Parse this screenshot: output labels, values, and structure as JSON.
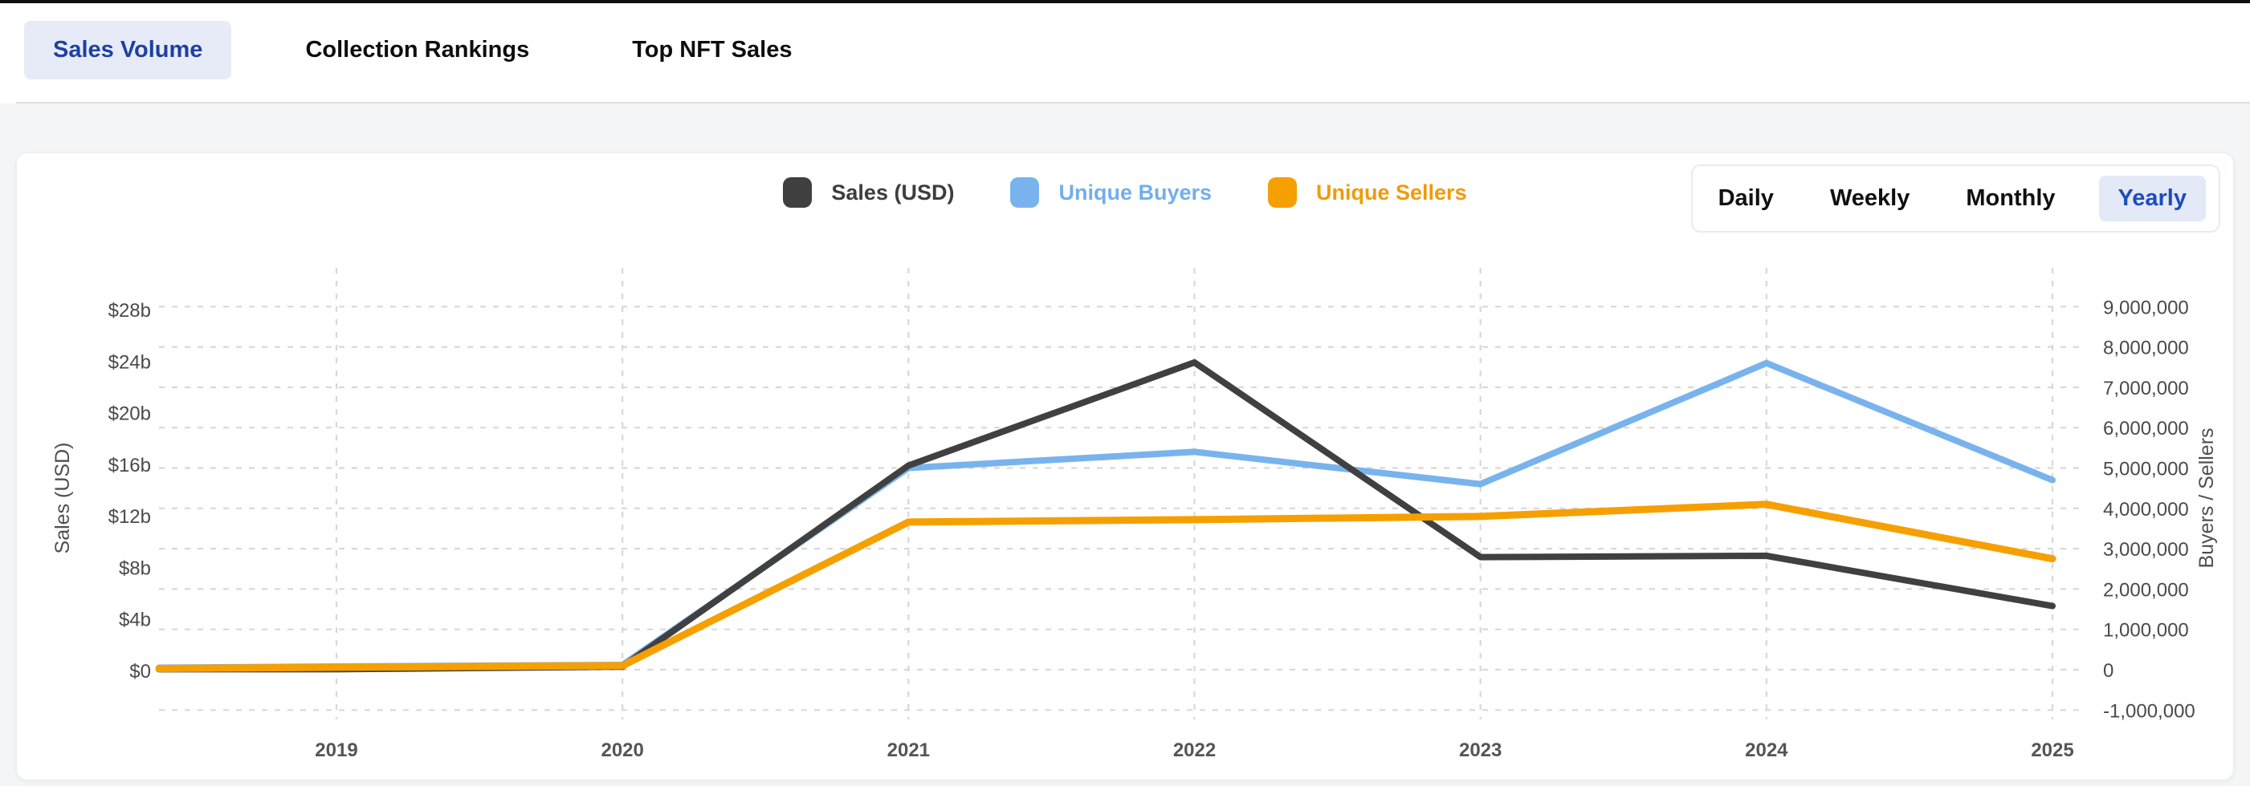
{
  "tabs": {
    "items": [
      {
        "label": "Sales Volume",
        "active": true
      },
      {
        "label": "Collection Rankings",
        "active": false
      },
      {
        "label": "Top NFT Sales",
        "active": false
      }
    ]
  },
  "legend": {
    "items": [
      {
        "label": "Sales (USD)",
        "swatch_color": "#404040",
        "text_color": "#3d3d3d"
      },
      {
        "label": "Unique Buyers",
        "swatch_color": "#79b3ed",
        "text_color": "#74aee9"
      },
      {
        "label": "Unique Sellers",
        "swatch_color": "#f5a000",
        "text_color": "#ef9b0b"
      }
    ]
  },
  "period_toggle": {
    "options": [
      {
        "label": "Daily",
        "active": false
      },
      {
        "label": "Weekly",
        "active": false
      },
      {
        "label": "Monthly",
        "active": false
      },
      {
        "label": "Yearly",
        "active": true
      }
    ]
  },
  "chart_data": {
    "type": "line",
    "x_years": [
      2018.4,
      2019,
      2020,
      2021,
      2022,
      2023,
      2024,
      2025
    ],
    "x_tick_labels": [
      "2019",
      "2020",
      "2021",
      "2022",
      "2023",
      "2024",
      "2025"
    ],
    "note_first_point": "series begin at unlabeled left plot edge (~2018.4) at near-zero values",
    "series": [
      {
        "name": "Sales (USD)",
        "axis": "left",
        "unit": "billion USD",
        "color": "#404040",
        "stroke_width": 8,
        "values_billions": [
          0.1,
          0.1,
          0.3,
          15.9,
          23.9,
          8.8,
          8.9,
          5.0
        ]
      },
      {
        "name": "Unique Buyers",
        "axis": "right",
        "unit": "count",
        "color": "#79b3ed",
        "stroke_width": 8,
        "values": [
          50000,
          80000,
          120000,
          5000000,
          5400000,
          4600000,
          7600000,
          4700000
        ]
      },
      {
        "name": "Unique Sellers",
        "axis": "right",
        "unit": "count",
        "color": "#f5a000",
        "stroke_width": 9,
        "values": [
          30000,
          60000,
          100000,
          3660000,
          3720000,
          3800000,
          4100000,
          2750000
        ]
      }
    ],
    "left_axis": {
      "title": "Sales (USD)",
      "tick_labels": [
        "$28b",
        "$24b",
        "$20b",
        "$16b",
        "$12b",
        "$8b",
        "$4b",
        "$0"
      ],
      "min": 0,
      "max_billions": 28,
      "tick_step_billions": 4
    },
    "right_axis": {
      "title": "Buyers / Sellers",
      "tick_labels": [
        "9,000,000",
        "8,000,000",
        "7,000,000",
        "6,000,000",
        "5,000,000",
        "4,000,000",
        "3,000,000",
        "2,000,000",
        "1,000,000",
        "0",
        "-1,000,000"
      ],
      "min": -1000000,
      "max": 9000000,
      "tick_step": 1000000
    },
    "grid": {
      "style": "dashed",
      "color": "#d8d8d8"
    }
  }
}
